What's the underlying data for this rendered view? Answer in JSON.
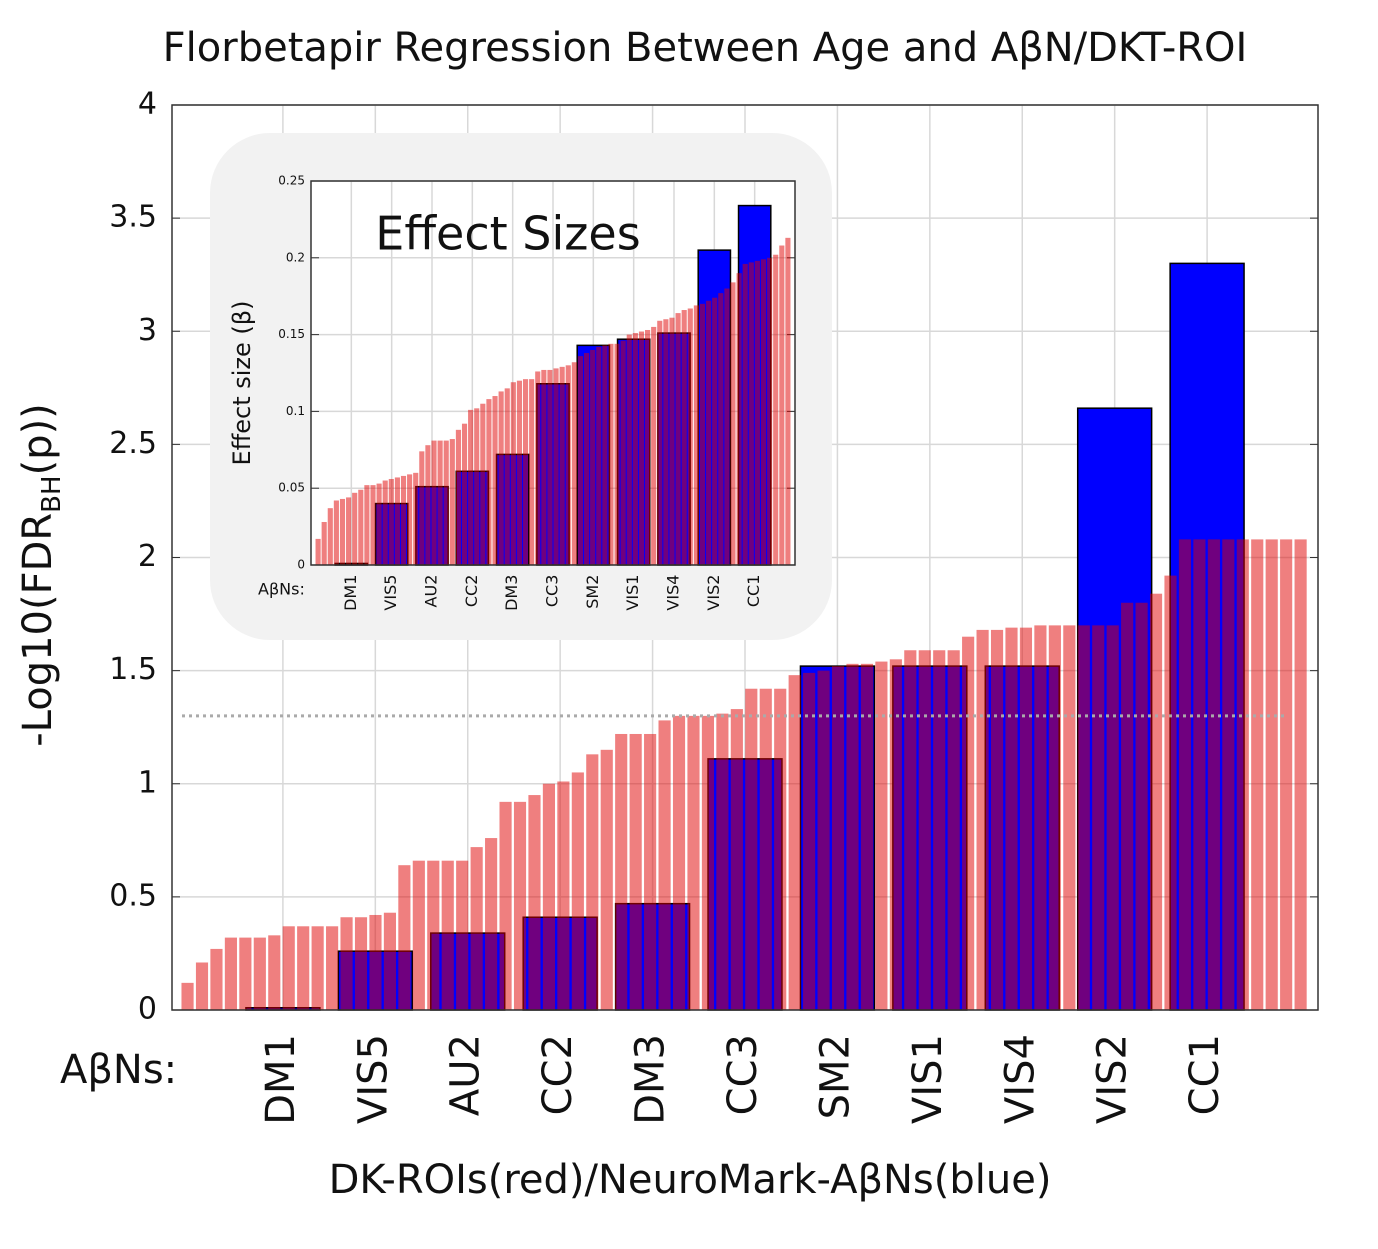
{
  "chart_data": [
    {
      "type": "bar",
      "title": "Florbetapir Regression Between Age and AβN/DKT-ROI",
      "xlabel": "DK-ROIs(red)/NeuroMark-AβNs(blue)",
      "ylabel": "-Log10(FDR",
      "ylabel_sub": "BH",
      "ylabel_end": "(p))",
      "category_label": "AβNs:",
      "categories": [
        "DM1",
        "VIS5",
        "AU2",
        "CC2",
        "DM3",
        "CC3",
        "SM2",
        "VIS1",
        "VIS4",
        "VIS2",
        "CC1"
      ],
      "values": [
        0.01,
        0.26,
        0.34,
        0.41,
        0.47,
        1.11,
        1.52,
        1.52,
        1.52,
        2.66,
        3.3
      ],
      "color": "#0000ff",
      "roi_values": [
        0.12,
        0.21,
        0.27,
        0.32,
        0.32,
        0.32,
        0.33,
        0.37,
        0.37,
        0.37,
        0.37,
        0.41,
        0.41,
        0.42,
        0.43,
        0.64,
        0.66,
        0.66,
        0.66,
        0.66,
        0.72,
        0.76,
        0.92,
        0.92,
        0.95,
        1.0,
        1.01,
        1.05,
        1.13,
        1.15,
        1.22,
        1.22,
        1.22,
        1.28,
        1.3,
        1.3,
        1.3,
        1.31,
        1.33,
        1.42,
        1.42,
        1.42,
        1.48,
        1.49,
        1.5,
        1.52,
        1.53,
        1.53,
        1.54,
        1.55,
        1.59,
        1.59,
        1.59,
        1.59,
        1.65,
        1.68,
        1.68,
        1.69,
        1.69,
        1.7,
        1.7,
        1.7,
        1.7,
        1.7,
        1.7,
        1.8,
        1.8,
        1.84,
        1.92,
        2.08,
        2.08,
        2.08,
        2.08,
        2.08,
        2.08,
        2.08,
        2.08,
        2.08
      ],
      "roi_color": "#e00000",
      "reference_line": 1.3,
      "ylim": [
        0,
        4
      ],
      "yticks": [
        0,
        0.5,
        1,
        1.5,
        2,
        2.5,
        3,
        3.5,
        4
      ],
      "grid": true
    },
    {
      "type": "bar",
      "title": "Effect Sizes",
      "ylabel": "Effect size (β)",
      "category_label": "AβNs:",
      "categories": [
        "DM1",
        "VIS5",
        "AU2",
        "CC2",
        "DM3",
        "CC3",
        "SM2",
        "VIS1",
        "VIS4",
        "VIS2",
        "CC1"
      ],
      "values": [
        0.001,
        0.04,
        0.051,
        0.061,
        0.072,
        0.118,
        0.143,
        0.147,
        0.151,
        0.205,
        0.234
      ],
      "color": "#0000ff",
      "roi_values": [
        0.017,
        0.028,
        0.037,
        0.042,
        0.043,
        0.044,
        0.047,
        0.049,
        0.052,
        0.052,
        0.053,
        0.055,
        0.056,
        0.057,
        0.058,
        0.059,
        0.06,
        0.074,
        0.078,
        0.081,
        0.081,
        0.081,
        0.082,
        0.088,
        0.092,
        0.101,
        0.102,
        0.105,
        0.108,
        0.11,
        0.113,
        0.115,
        0.119,
        0.12,
        0.121,
        0.121,
        0.126,
        0.127,
        0.127,
        0.128,
        0.129,
        0.13,
        0.132,
        0.136,
        0.138,
        0.14,
        0.142,
        0.143,
        0.144,
        0.144,
        0.146,
        0.15,
        0.151,
        0.152,
        0.153,
        0.155,
        0.159,
        0.16,
        0.161,
        0.164,
        0.166,
        0.167,
        0.169,
        0.17,
        0.172,
        0.174,
        0.177,
        0.18,
        0.184,
        0.19,
        0.196,
        0.197,
        0.198,
        0.199,
        0.2,
        0.202,
        0.208,
        0.213
      ],
      "roi_color": "#e00000",
      "ylim": [
        0,
        0.25
      ],
      "yticks": [
        0,
        0.05,
        0.1,
        0.15,
        0.2,
        0.25
      ],
      "grid": true
    }
  ]
}
